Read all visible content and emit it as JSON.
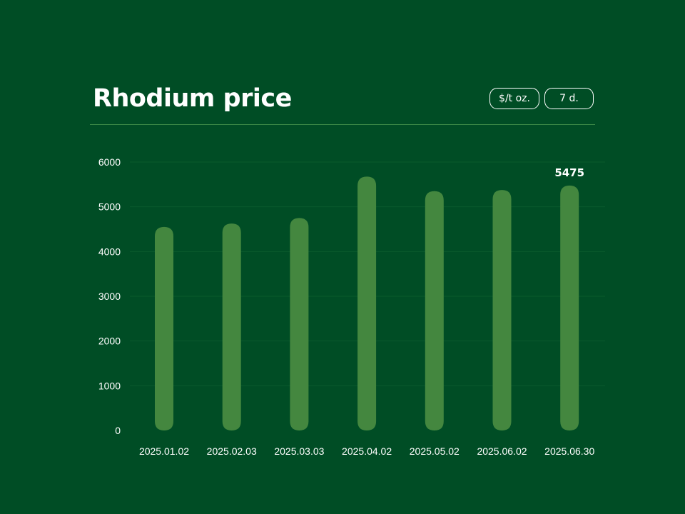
{
  "header": {
    "title": "Rhodium price",
    "unit_label": "$/t oz.",
    "range_label": "7 d."
  },
  "colors": {
    "background": "#004d25",
    "bar": "#44873f",
    "divider": "#3d8a48",
    "text": "#ffffff"
  },
  "chart_data": {
    "type": "bar",
    "title": "Rhodium price",
    "xlabel": "",
    "ylabel": "",
    "categories": [
      "2025.01.02",
      "2025.02.03",
      "2025.03.03",
      "2025.04.02",
      "2025.05.02",
      "2025.06.02",
      "2025.06.30"
    ],
    "values": [
      4550,
      4625,
      4750,
      5675,
      5350,
      5375,
      5475
    ],
    "ylim": [
      0,
      6000
    ],
    "yticks": [
      0,
      1000,
      2000,
      3000,
      4000,
      5000,
      6000
    ],
    "grid": true,
    "highlighted_value_label": "5475"
  }
}
